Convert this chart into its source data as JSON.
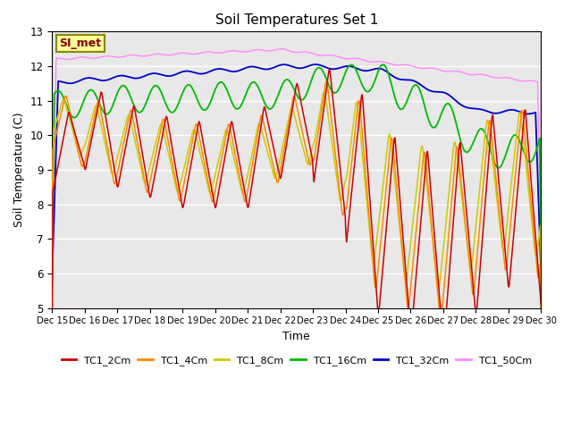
{
  "title": "Soil Temperatures Set 1",
  "xlabel": "Time",
  "ylabel": "Soil Temperature (C)",
  "ylim": [
    5.0,
    13.0
  ],
  "yticks": [
    5.0,
    6.0,
    7.0,
    8.0,
    9.0,
    10.0,
    11.0,
    12.0,
    13.0
  ],
  "x_labels": [
    "Dec 15",
    "Dec 16",
    "Dec 17",
    "Dec 18",
    "Dec 19",
    "Dec 20",
    "Dec 21",
    "Dec 22",
    "Dec 23",
    "Dec 24",
    "Dec 25",
    "Dec 26",
    "Dec 27",
    "Dec 28",
    "Dec 29",
    "Dec 30"
  ],
  "colors": {
    "TC1_2Cm": "#cc0000",
    "TC1_4Cm": "#ff8800",
    "TC1_8Cm": "#cccc00",
    "TC1_16Cm": "#00bb00",
    "TC1_32Cm": "#0000cc",
    "TC1_50Cm": "#ff88ff"
  },
  "legend_label": "SI_met",
  "background_color": "#e8e8e8",
  "grid_color": "#ffffff"
}
